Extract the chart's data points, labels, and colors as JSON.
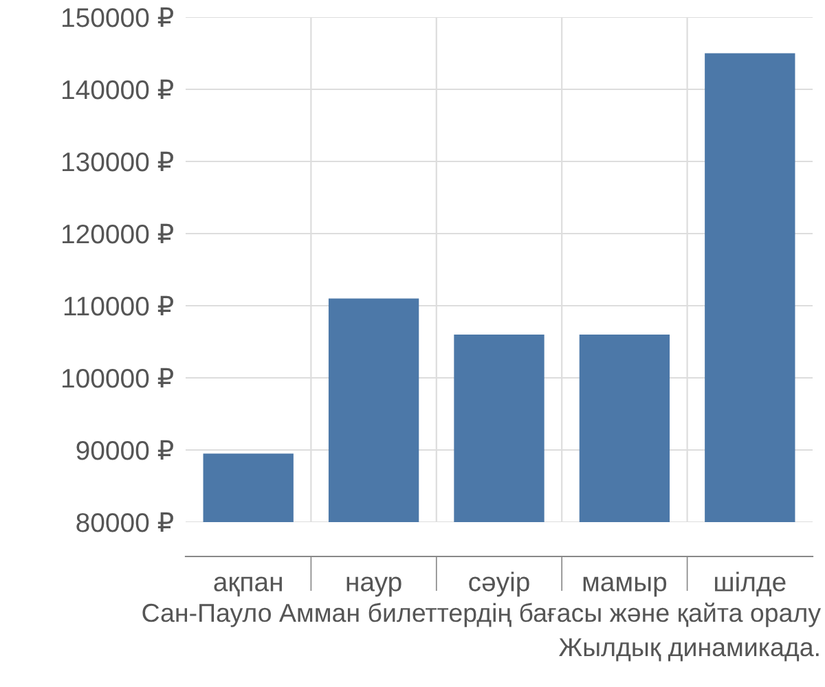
{
  "chart_data": {
    "type": "bar",
    "categories": [
      "ақпан",
      "наур",
      "сәуір",
      "мамыр",
      "шілде"
    ],
    "values": [
      89500,
      111000,
      106000,
      106000,
      145000
    ],
    "color": "#4c78a8",
    "ylim": [
      80000,
      150000
    ],
    "yticks": [
      {
        "value": 80000,
        "label": "80000 ₽"
      },
      {
        "value": 90000,
        "label": "90000 ₽"
      },
      {
        "value": 100000,
        "label": "100000 ₽"
      },
      {
        "value": 110000,
        "label": "110000 ₽"
      },
      {
        "value": 120000,
        "label": "120000 ₽"
      },
      {
        "value": 130000,
        "label": "130000 ₽"
      },
      {
        "value": 140000,
        "label": "140000 ₽"
      },
      {
        "value": 150000,
        "label": "150000 ₽"
      }
    ],
    "grid": true,
    "annotations": [
      "Сан-Пауло Амман билеттердің бағасы және қайта оралу",
      "Жылдық динамикада."
    ]
  }
}
